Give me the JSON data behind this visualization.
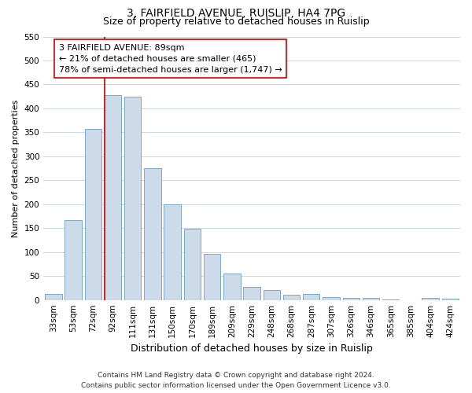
{
  "title": "3, FAIRFIELD AVENUE, RUISLIP, HA4 7PG",
  "subtitle": "Size of property relative to detached houses in Ruislip",
  "xlabel": "Distribution of detached houses by size in Ruislip",
  "ylabel": "Number of detached properties",
  "categories": [
    "33sqm",
    "53sqm",
    "72sqm",
    "92sqm",
    "111sqm",
    "131sqm",
    "150sqm",
    "170sqm",
    "189sqm",
    "209sqm",
    "229sqm",
    "248sqm",
    "268sqm",
    "287sqm",
    "307sqm",
    "326sqm",
    "346sqm",
    "365sqm",
    "385sqm",
    "404sqm",
    "424sqm"
  ],
  "values": [
    13,
    167,
    357,
    428,
    425,
    275,
    200,
    149,
    97,
    55,
    27,
    20,
    11,
    12,
    6,
    5,
    5,
    1,
    0,
    4,
    3
  ],
  "bar_color": "#cddaea",
  "bar_edge_color": "#7aaac8",
  "vline_index": 3,
  "vline_color": "#cc0000",
  "annotation_text": "3 FAIRFIELD AVENUE: 89sqm\n← 21% of detached houses are smaller (465)\n78% of semi-detached houses are larger (1,747) →",
  "annotation_box_facecolor": "#ffffff",
  "annotation_box_edgecolor": "#cc0000",
  "ylim": [
    0,
    550
  ],
  "yticks": [
    0,
    50,
    100,
    150,
    200,
    250,
    300,
    350,
    400,
    450,
    500,
    550
  ],
  "footer_line1": "Contains HM Land Registry data © Crown copyright and database right 2024.",
  "footer_line2": "Contains public sector information licensed under the Open Government Licence v3.0.",
  "fig_facecolor": "#ffffff",
  "plot_facecolor": "#ffffff",
  "grid_color": "#c8d8e8",
  "title_fontsize": 10,
  "subtitle_fontsize": 9,
  "xlabel_fontsize": 9,
  "ylabel_fontsize": 8,
  "tick_fontsize": 7.5,
  "annotation_fontsize": 8,
  "footer_fontsize": 6.5
}
